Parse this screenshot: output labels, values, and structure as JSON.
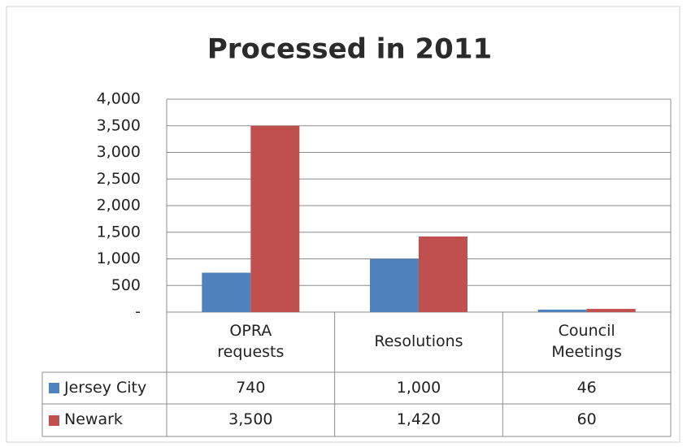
{
  "chart_data": {
    "type": "bar",
    "title": "Processed in 2011",
    "categories": [
      "OPRA requests",
      "Resolutions",
      "Council Meetings"
    ],
    "series": [
      {
        "name": "Jersey City",
        "color": "#4f81bd",
        "values": [
          740,
          1000,
          46
        ],
        "value_labels": [
          "740",
          "1,000",
          "46"
        ]
      },
      {
        "name": "Newark",
        "color": "#c0504d",
        "values": [
          3500,
          1420,
          60
        ],
        "value_labels": [
          "3,500",
          "1,420",
          "60"
        ]
      }
    ],
    "ylim": [
      0,
      4000
    ],
    "yticks": [
      {
        "value": 0,
        "label": "-"
      },
      500,
      {
        "value": 1000,
        "label": "1,000"
      },
      {
        "value": 1500,
        "label": "1,500"
      },
      {
        "value": 2000,
        "label": "2,000"
      },
      {
        "value": 2500,
        "label": "2,500"
      },
      {
        "value": 3000,
        "label": "3,000"
      },
      {
        "value": 3500,
        "label": "3,500"
      },
      {
        "value": 4000,
        "label": "4,000"
      }
    ],
    "grid": true,
    "legend": "table"
  }
}
